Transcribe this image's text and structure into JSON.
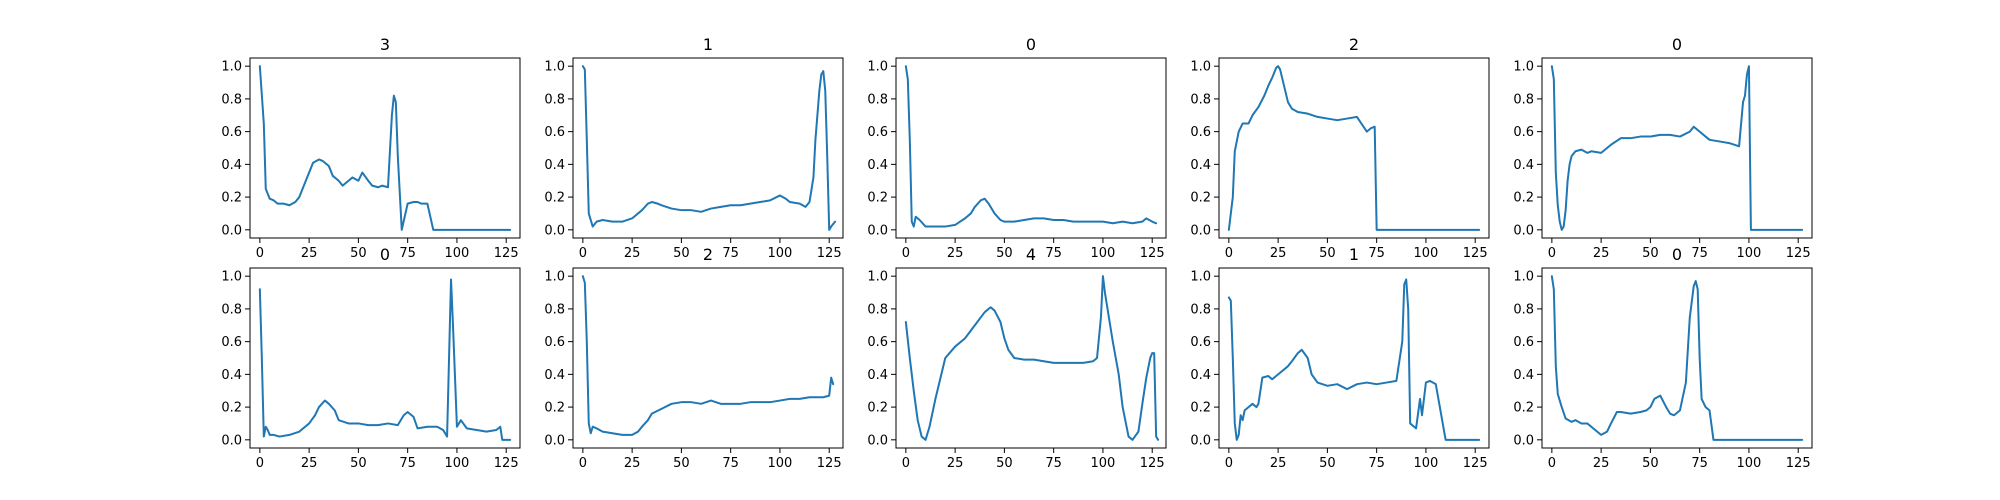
{
  "chart_data": [
    {
      "type": "line",
      "title": "3",
      "xlim": [
        -5,
        132
      ],
      "ylim": [
        -0.05,
        1.05
      ],
      "xticks": [
        0,
        25,
        50,
        75,
        100,
        125
      ],
      "yticks": [
        0.0,
        0.2,
        0.4,
        0.6,
        0.8,
        1.0
      ],
      "x": [
        0,
        2,
        3,
        5,
        7,
        9,
        12,
        15,
        18,
        20,
        22,
        25,
        27,
        30,
        32,
        35,
        37,
        40,
        42,
        45,
        47,
        50,
        52,
        55,
        57,
        60,
        62,
        65,
        67,
        68,
        69,
        70,
        72,
        75,
        78,
        80,
        82,
        85,
        88,
        100,
        110,
        120,
        125,
        127
      ],
      "y": [
        1.0,
        0.65,
        0.25,
        0.19,
        0.18,
        0.16,
        0.16,
        0.15,
        0.17,
        0.2,
        0.26,
        0.35,
        0.41,
        0.43,
        0.42,
        0.39,
        0.33,
        0.3,
        0.27,
        0.3,
        0.32,
        0.3,
        0.35,
        0.3,
        0.27,
        0.26,
        0.27,
        0.26,
        0.7,
        0.82,
        0.78,
        0.45,
        0.0,
        0.16,
        0.17,
        0.17,
        0.16,
        0.16,
        0.0,
        0.0,
        0.0,
        0.0,
        0.0,
        0.0
      ],
      "series": [
        {
          "color": "#1f77b4"
        }
      ]
    },
    {
      "type": "line",
      "title": "1",
      "xlim": [
        -5,
        132
      ],
      "ylim": [
        -0.05,
        1.05
      ],
      "xticks": [
        0,
        25,
        50,
        75,
        100,
        125
      ],
      "yticks": [
        0.0,
        0.2,
        0.4,
        0.6,
        0.8,
        1.0
      ],
      "x": [
        0,
        1,
        2,
        3,
        5,
        7,
        10,
        15,
        20,
        25,
        30,
        33,
        35,
        38,
        40,
        45,
        50,
        55,
        60,
        65,
        70,
        75,
        80,
        85,
        90,
        95,
        100,
        103,
        105,
        110,
        113,
        115,
        117,
        118,
        120,
        121,
        122,
        123,
        124,
        125,
        126,
        128
      ],
      "y": [
        1.0,
        0.98,
        0.55,
        0.1,
        0.02,
        0.05,
        0.06,
        0.05,
        0.05,
        0.07,
        0.12,
        0.16,
        0.17,
        0.16,
        0.15,
        0.13,
        0.12,
        0.12,
        0.11,
        0.13,
        0.14,
        0.15,
        0.15,
        0.16,
        0.17,
        0.18,
        0.21,
        0.19,
        0.17,
        0.16,
        0.14,
        0.17,
        0.32,
        0.55,
        0.85,
        0.95,
        0.97,
        0.85,
        0.45,
        0.0,
        0.02,
        0.05
      ],
      "series": [
        {
          "color": "#1f77b4"
        }
      ]
    },
    {
      "type": "line",
      "title": "0",
      "xlim": [
        -5,
        132
      ],
      "ylim": [
        -0.05,
        1.05
      ],
      "xticks": [
        0,
        25,
        50,
        75,
        100,
        125
      ],
      "yticks": [
        0.0,
        0.2,
        0.4,
        0.6,
        0.8,
        1.0
      ],
      "x": [
        0,
        1,
        2,
        3,
        4,
        5,
        7,
        10,
        15,
        20,
        25,
        30,
        33,
        35,
        38,
        40,
        42,
        45,
        48,
        50,
        55,
        60,
        65,
        70,
        75,
        80,
        85,
        90,
        95,
        100,
        105,
        110,
        115,
        120,
        122,
        125,
        127
      ],
      "y": [
        1.0,
        0.92,
        0.55,
        0.05,
        0.02,
        0.08,
        0.06,
        0.02,
        0.02,
        0.02,
        0.03,
        0.07,
        0.1,
        0.14,
        0.18,
        0.19,
        0.16,
        0.1,
        0.06,
        0.05,
        0.05,
        0.06,
        0.07,
        0.07,
        0.06,
        0.06,
        0.05,
        0.05,
        0.05,
        0.05,
        0.04,
        0.05,
        0.04,
        0.05,
        0.07,
        0.05,
        0.04
      ],
      "series": [
        {
          "color": "#1f77b4"
        }
      ]
    },
    {
      "type": "line",
      "title": "2",
      "xlim": [
        -5,
        132
      ],
      "ylim": [
        -0.05,
        1.05
      ],
      "xticks": [
        0,
        25,
        50,
        75,
        100,
        125
      ],
      "yticks": [
        0.0,
        0.2,
        0.4,
        0.6,
        0.8,
        1.0
      ],
      "x": [
        0,
        2,
        3,
        5,
        7,
        10,
        12,
        15,
        18,
        20,
        22,
        24,
        25,
        26,
        28,
        30,
        32,
        35,
        40,
        45,
        50,
        55,
        60,
        65,
        70,
        72,
        74,
        75,
        76,
        80,
        90,
        100,
        110,
        120,
        125,
        127
      ],
      "y": [
        0.0,
        0.2,
        0.48,
        0.6,
        0.65,
        0.65,
        0.7,
        0.75,
        0.82,
        0.88,
        0.93,
        0.99,
        1.0,
        0.98,
        0.88,
        0.78,
        0.74,
        0.72,
        0.71,
        0.69,
        0.68,
        0.67,
        0.68,
        0.69,
        0.6,
        0.62,
        0.63,
        0.0,
        0.0,
        0.0,
        0.0,
        0.0,
        0.0,
        0.0,
        0.0,
        0.0
      ],
      "series": [
        {
          "color": "#1f77b4"
        }
      ]
    },
    {
      "type": "line",
      "title": "0",
      "xlim": [
        -5,
        132
      ],
      "ylim": [
        -0.05,
        1.05
      ],
      "xticks": [
        0,
        25,
        50,
        75,
        100,
        125
      ],
      "yticks": [
        0.0,
        0.2,
        0.4,
        0.6,
        0.8,
        1.0
      ],
      "x": [
        0,
        1,
        2,
        3,
        4,
        5,
        6,
        7,
        8,
        9,
        10,
        12,
        15,
        18,
        20,
        25,
        30,
        35,
        40,
        45,
        50,
        55,
        60,
        65,
        70,
        72,
        75,
        80,
        85,
        90,
        95,
        97,
        98,
        99,
        100,
        101,
        105,
        110,
        120,
        127
      ],
      "y": [
        1.0,
        0.92,
        0.35,
        0.15,
        0.05,
        0.0,
        0.02,
        0.12,
        0.3,
        0.4,
        0.45,
        0.48,
        0.49,
        0.47,
        0.48,
        0.47,
        0.52,
        0.56,
        0.56,
        0.57,
        0.57,
        0.58,
        0.58,
        0.57,
        0.6,
        0.63,
        0.6,
        0.55,
        0.54,
        0.53,
        0.51,
        0.78,
        0.82,
        0.95,
        1.0,
        0.0,
        0.0,
        0.0,
        0.0,
        0.0
      ],
      "series": [
        {
          "color": "#1f77b4"
        }
      ]
    },
    {
      "type": "line",
      "title": "0",
      "xlim": [
        -5,
        132
      ],
      "ylim": [
        -0.05,
        1.05
      ],
      "xticks": [
        0,
        25,
        50,
        75,
        100,
        125
      ],
      "yticks": [
        0.0,
        0.2,
        0.4,
        0.6,
        0.8,
        1.0
      ],
      "x": [
        0,
        1,
        2,
        3,
        4,
        5,
        7,
        10,
        15,
        20,
        25,
        28,
        30,
        33,
        35,
        38,
        40,
        45,
        50,
        55,
        60,
        65,
        70,
        73,
        75,
        78,
        80,
        85,
        90,
        93,
        95,
        96,
        97,
        98,
        100,
        102,
        105,
        110,
        115,
        120,
        122,
        123,
        125,
        127
      ],
      "y": [
        0.92,
        0.5,
        0.02,
        0.08,
        0.06,
        0.03,
        0.03,
        0.02,
        0.03,
        0.05,
        0.1,
        0.15,
        0.2,
        0.24,
        0.22,
        0.18,
        0.12,
        0.1,
        0.1,
        0.09,
        0.09,
        0.1,
        0.09,
        0.15,
        0.17,
        0.14,
        0.07,
        0.08,
        0.08,
        0.06,
        0.02,
        0.5,
        0.98,
        0.7,
        0.08,
        0.12,
        0.07,
        0.06,
        0.05,
        0.06,
        0.08,
        0.0,
        0.0,
        0.0
      ],
      "series": [
        {
          "color": "#1f77b4"
        }
      ]
    },
    {
      "type": "line",
      "title": "2",
      "xlim": [
        -5,
        132
      ],
      "ylim": [
        -0.05,
        1.05
      ],
      "xticks": [
        0,
        25,
        50,
        75,
        100,
        125
      ],
      "yticks": [
        0.0,
        0.2,
        0.4,
        0.6,
        0.8,
        1.0
      ],
      "x": [
        0,
        1,
        2,
        3,
        4,
        5,
        7,
        10,
        15,
        20,
        25,
        28,
        30,
        33,
        35,
        40,
        45,
        50,
        55,
        60,
        65,
        70,
        75,
        80,
        85,
        90,
        95,
        100,
        105,
        110,
        115,
        120,
        122,
        125,
        126,
        127
      ],
      "y": [
        1.0,
        0.96,
        0.6,
        0.1,
        0.04,
        0.08,
        0.07,
        0.05,
        0.04,
        0.03,
        0.03,
        0.05,
        0.08,
        0.12,
        0.16,
        0.19,
        0.22,
        0.23,
        0.23,
        0.22,
        0.24,
        0.22,
        0.22,
        0.22,
        0.23,
        0.23,
        0.23,
        0.24,
        0.25,
        0.25,
        0.26,
        0.26,
        0.26,
        0.27,
        0.38,
        0.34
      ],
      "series": [
        {
          "color": "#1f77b4"
        }
      ]
    },
    {
      "type": "line",
      "title": "4",
      "xlim": [
        -5,
        132
      ],
      "ylim": [
        -0.05,
        1.05
      ],
      "xticks": [
        0,
        25,
        50,
        75,
        100,
        125
      ],
      "yticks": [
        0.0,
        0.2,
        0.4,
        0.6,
        0.8,
        1.0
      ],
      "x": [
        0,
        2,
        4,
        6,
        8,
        10,
        12,
        15,
        18,
        20,
        25,
        30,
        35,
        40,
        43,
        45,
        48,
        50,
        52,
        55,
        60,
        65,
        70,
        75,
        80,
        85,
        90,
        95,
        97,
        99,
        100,
        101,
        103,
        105,
        108,
        110,
        113,
        115,
        118,
        120,
        122,
        124,
        125,
        126,
        127,
        128
      ],
      "y": [
        0.72,
        0.5,
        0.3,
        0.12,
        0.02,
        0.0,
        0.08,
        0.25,
        0.4,
        0.5,
        0.57,
        0.62,
        0.7,
        0.78,
        0.81,
        0.79,
        0.72,
        0.62,
        0.55,
        0.5,
        0.49,
        0.49,
        0.48,
        0.47,
        0.47,
        0.47,
        0.47,
        0.48,
        0.5,
        0.75,
        1.0,
        0.9,
        0.75,
        0.6,
        0.4,
        0.2,
        0.02,
        0.0,
        0.05,
        0.22,
        0.38,
        0.5,
        0.53,
        0.53,
        0.02,
        0.0
      ],
      "series": [
        {
          "color": "#1f77b4"
        }
      ]
    },
    {
      "type": "line",
      "title": "1",
      "xlim": [
        -5,
        132
      ],
      "ylim": [
        -0.05,
        1.05
      ],
      "xticks": [
        0,
        25,
        50,
        75,
        100,
        125
      ],
      "yticks": [
        0.0,
        0.2,
        0.4,
        0.6,
        0.8,
        1.0
      ],
      "x": [
        0,
        1,
        2,
        3,
        4,
        5,
        6,
        7,
        8,
        10,
        12,
        14,
        15,
        17,
        20,
        22,
        25,
        27,
        30,
        32,
        35,
        37,
        40,
        42,
        45,
        50,
        55,
        60,
        65,
        70,
        75,
        80,
        85,
        88,
        89,
        90,
        91,
        92,
        95,
        97,
        98,
        100,
        102,
        105,
        110,
        120,
        127
      ],
      "y": [
        0.87,
        0.85,
        0.5,
        0.1,
        0.0,
        0.03,
        0.15,
        0.12,
        0.18,
        0.2,
        0.22,
        0.2,
        0.22,
        0.38,
        0.39,
        0.37,
        0.4,
        0.42,
        0.45,
        0.48,
        0.53,
        0.55,
        0.5,
        0.4,
        0.35,
        0.33,
        0.34,
        0.31,
        0.34,
        0.35,
        0.34,
        0.35,
        0.36,
        0.6,
        0.95,
        0.98,
        0.8,
        0.1,
        0.07,
        0.25,
        0.15,
        0.35,
        0.36,
        0.34,
        0.0,
        0.0,
        0.0
      ],
      "series": [
        {
          "color": "#1f77b4"
        }
      ]
    },
    {
      "type": "line",
      "title": "0",
      "xlim": [
        -5,
        132
      ],
      "ylim": [
        -0.05,
        1.05
      ],
      "xticks": [
        0,
        25,
        50,
        75,
        100,
        125
      ],
      "yticks": [
        0.0,
        0.2,
        0.4,
        0.6,
        0.8,
        1.0
      ],
      "x": [
        0,
        1,
        2,
        3,
        5,
        7,
        10,
        12,
        15,
        18,
        20,
        22,
        25,
        28,
        30,
        33,
        35,
        40,
        45,
        48,
        50,
        52,
        55,
        58,
        60,
        62,
        65,
        68,
        70,
        72,
        73,
        74,
        75,
        76,
        78,
        80,
        82,
        85,
        90,
        100,
        110,
        120,
        127
      ],
      "y": [
        1.0,
        0.92,
        0.45,
        0.28,
        0.2,
        0.13,
        0.11,
        0.12,
        0.1,
        0.1,
        0.08,
        0.06,
        0.03,
        0.05,
        0.1,
        0.17,
        0.17,
        0.16,
        0.17,
        0.18,
        0.2,
        0.25,
        0.27,
        0.2,
        0.16,
        0.15,
        0.18,
        0.35,
        0.75,
        0.94,
        0.97,
        0.92,
        0.5,
        0.25,
        0.2,
        0.18,
        0.0,
        0.0,
        0.0,
        0.0,
        0.0,
        0.0,
        0.0
      ],
      "series": [
        {
          "color": "#1f77b4"
        }
      ]
    }
  ]
}
